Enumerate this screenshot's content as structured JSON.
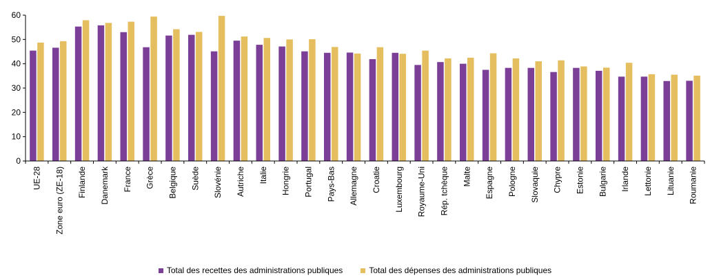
{
  "chart_data": {
    "type": "bar",
    "title": "",
    "xlabel": "",
    "ylabel": "",
    "ylim": [
      0,
      60
    ],
    "yticks": [
      0,
      10,
      20,
      30,
      40,
      50,
      60
    ],
    "grid": false,
    "legend_position": "bottom",
    "categories": [
      "UE-28",
      "Zone euro (ZE-18)",
      "Finlande",
      "Danemark",
      "France",
      "Grèce",
      "Belgique",
      "Suède",
      "Slovénie",
      "Autriche",
      "Italie",
      "Hongrie",
      "Portugal",
      "Pays-Bas",
      "Allemagne",
      "Croatie",
      "Luxembourg",
      "Royaume-Uni",
      "Rép. tchèque",
      "Malte",
      "Espagne",
      "Pologne",
      "Slovaquie",
      "Chypre",
      "Estonie",
      "Bulgarie",
      "Irlande",
      "Lettonie",
      "Lituanie",
      "Roumanie"
    ],
    "series": [
      {
        "name": "Total des recettes des administrations publiques",
        "color": "#7b3f98",
        "values": [
          45.4,
          46.6,
          55.3,
          55.8,
          53.0,
          46.8,
          51.6,
          51.9,
          45.1,
          49.5,
          47.8,
          47.1,
          45.1,
          44.5,
          44.6,
          41.9,
          44.5,
          39.5,
          40.7,
          40.0,
          37.5,
          38.3,
          38.3,
          36.6,
          38.3,
          37.1,
          34.7,
          34.7,
          32.9,
          33.0
        ]
      },
      {
        "name": "Total des dépenses des administrations publiques",
        "color": "#e5be5f",
        "values": [
          48.7,
          49.3,
          57.9,
          56.8,
          57.3,
          59.4,
          54.2,
          53.1,
          59.7,
          51.2,
          50.6,
          50.0,
          50.1,
          46.9,
          44.2,
          46.8,
          44.1,
          45.4,
          42.2,
          42.5,
          44.3,
          42.2,
          41.0,
          41.4,
          38.9,
          38.4,
          40.4,
          35.7,
          35.5,
          35.1
        ]
      }
    ]
  }
}
